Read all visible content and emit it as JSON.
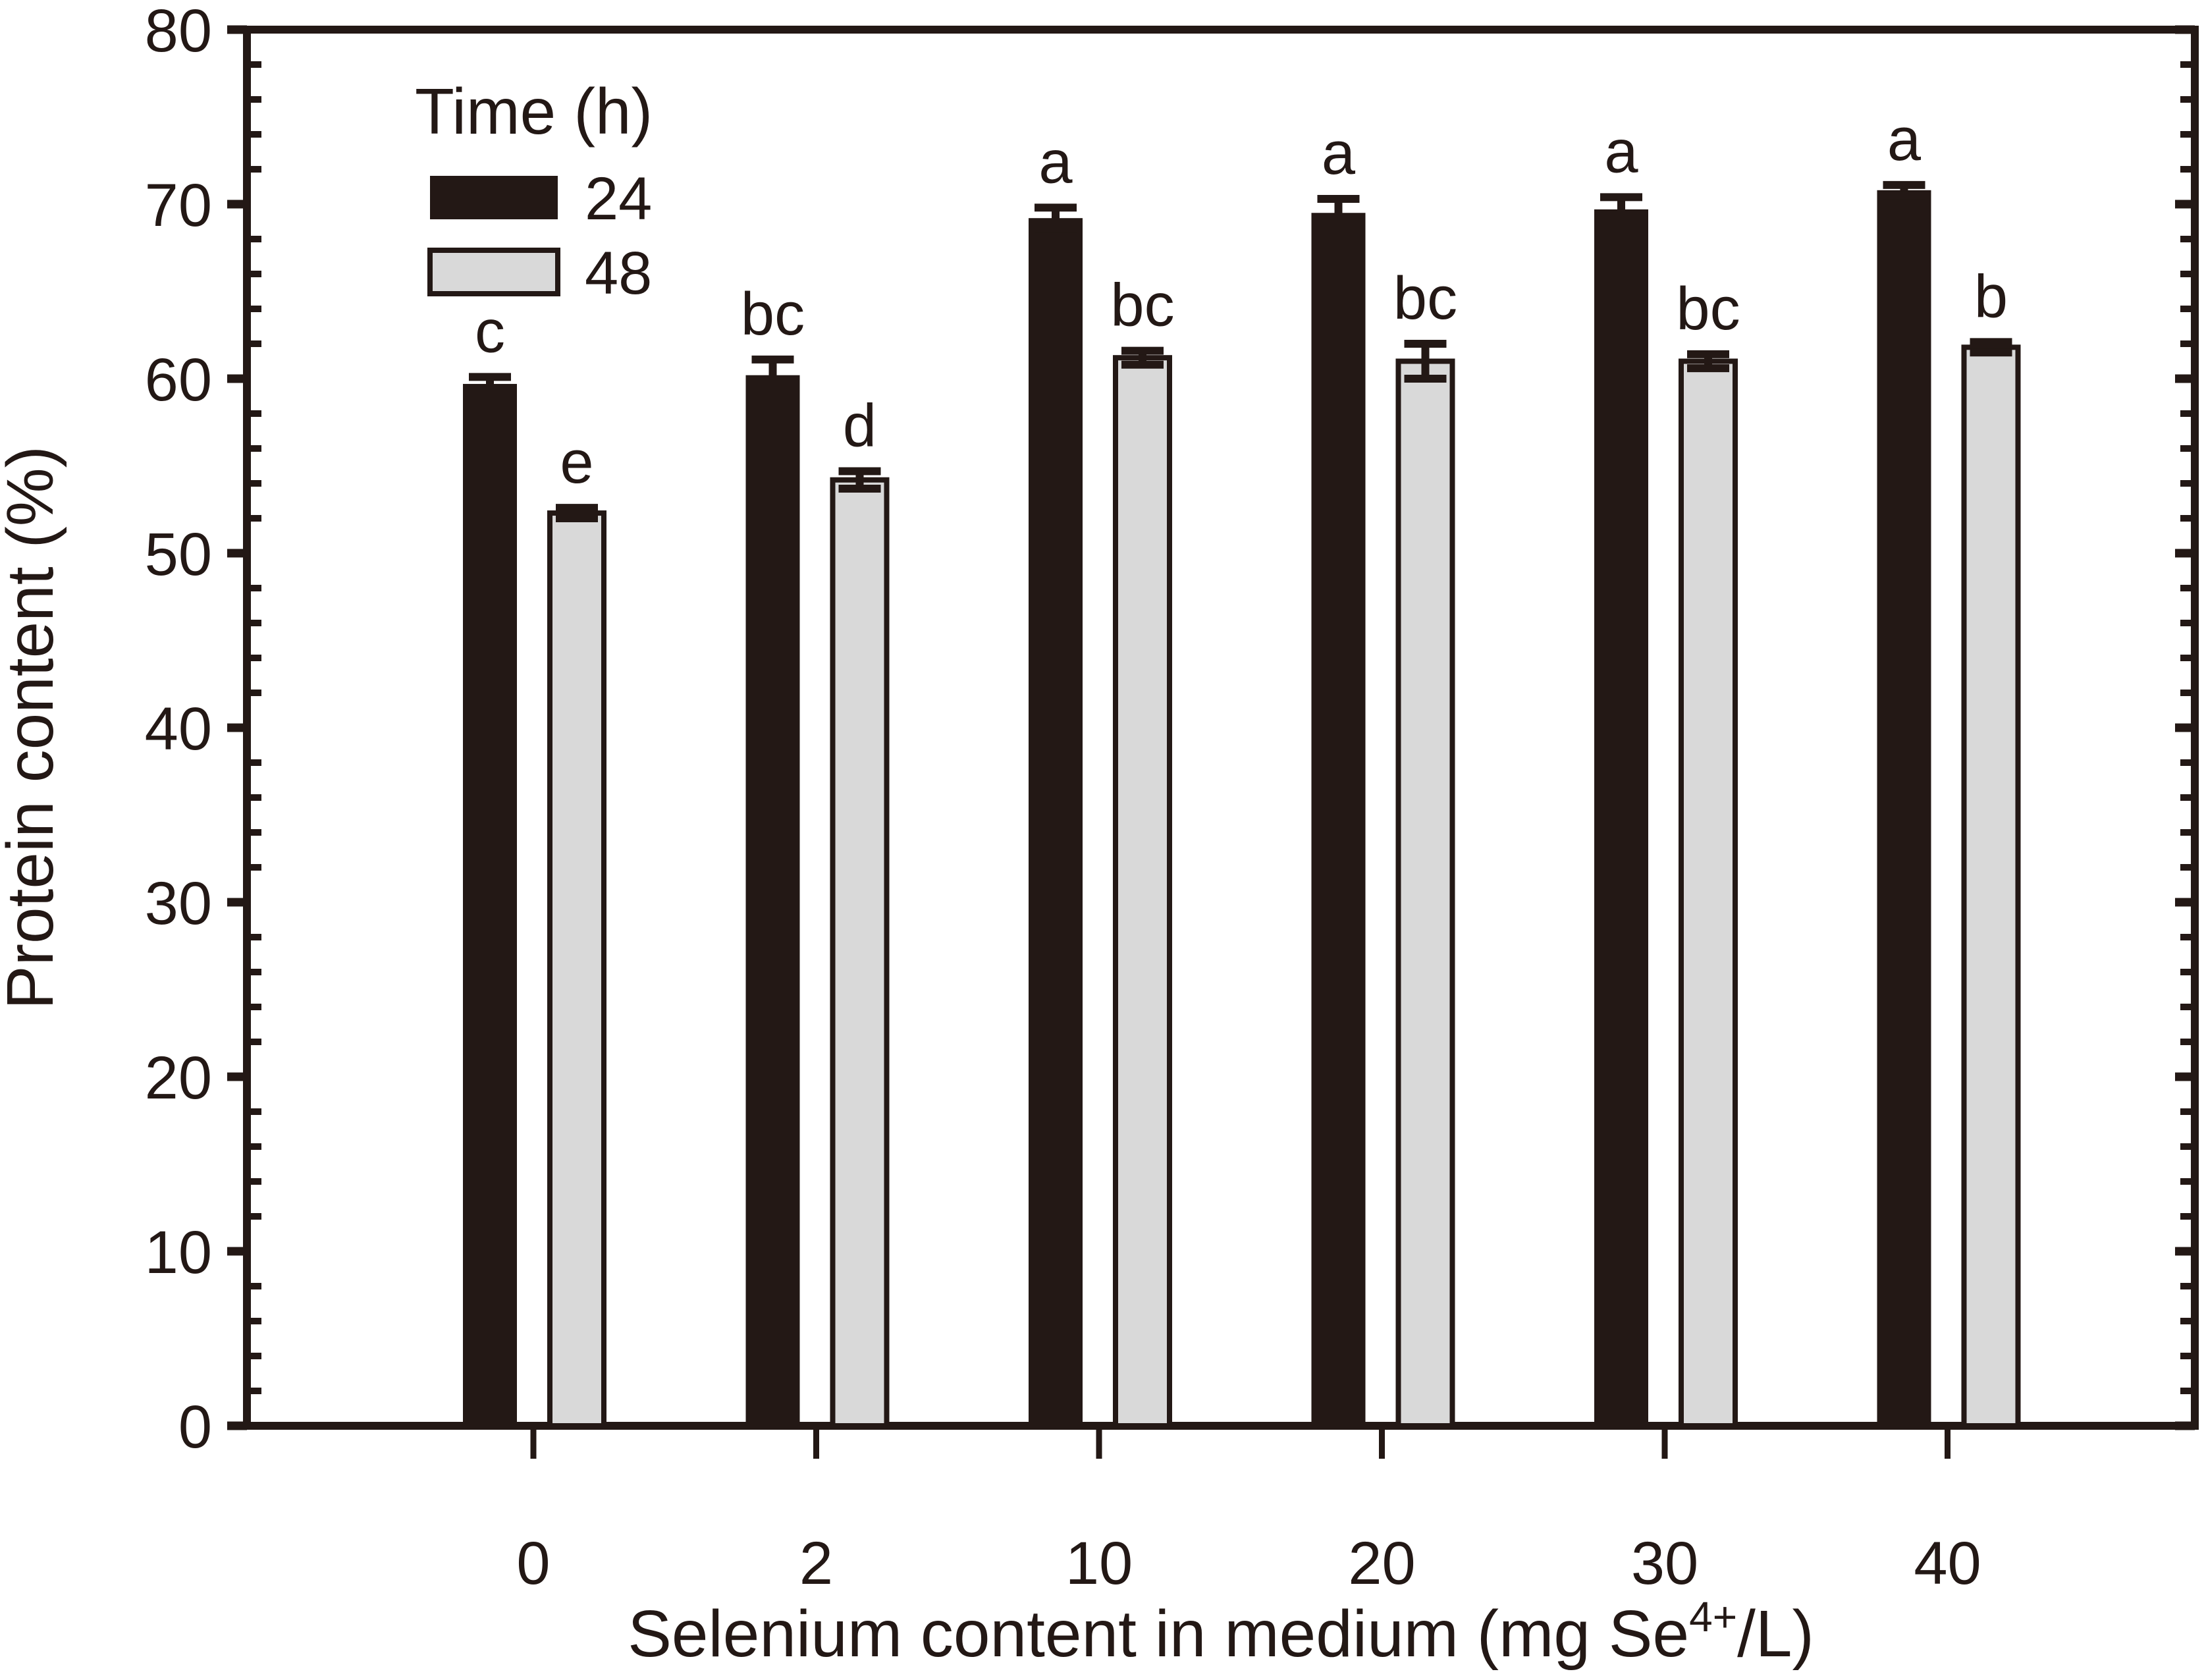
{
  "figure": {
    "background": "#ffffff",
    "ink": "#231815",
    "gray_fill": "#d9d9d9"
  },
  "chart_data": {
    "type": "bar",
    "title": "",
    "xlabel": "Selenium content in medium (mg Se4+/L)",
    "xlabel_parts": {
      "base": "Selenium content in medium (mg Se",
      "super": "4+",
      "end": "/L)"
    },
    "ylabel": "Protein content (%)",
    "ylim": [
      0,
      80
    ],
    "y_major_step": 10,
    "y_minor_step": 2,
    "y_tick_labels": [
      "0",
      "10",
      "20",
      "30",
      "40",
      "50",
      "60",
      "70",
      "80"
    ],
    "grid": false,
    "legend_position": "upper-left-inside",
    "categories": [
      "0",
      "2",
      "10",
      "20",
      "30",
      "40"
    ],
    "legend": {
      "title": "Time (h)",
      "entries": [
        {
          "label": "24",
          "color": "#231815"
        },
        {
          "label": "48",
          "color": "#d9d9d9"
        }
      ]
    },
    "series": [
      {
        "name": "24",
        "fill": "#231815",
        "values": [
          59.7,
          60.2,
          69.2,
          69.5,
          69.7,
          70.8
        ],
        "errors": [
          0.4,
          0.9,
          0.6,
          0.8,
          0.7,
          0.3
        ],
        "sig_labels": [
          "c",
          "bc",
          "a",
          "a",
          "a",
          "a"
        ]
      },
      {
        "name": "48",
        "fill": "#d9d9d9",
        "stroke": "#231815",
        "values": [
          52.3,
          54.2,
          61.2,
          61.0,
          61.0,
          61.8
        ],
        "errors": [
          0.3,
          0.5,
          0.4,
          1.0,
          0.4,
          0.3
        ],
        "sig_labels": [
          "e",
          "d",
          "bc",
          "bc",
          "bc",
          "b"
        ]
      }
    ]
  }
}
